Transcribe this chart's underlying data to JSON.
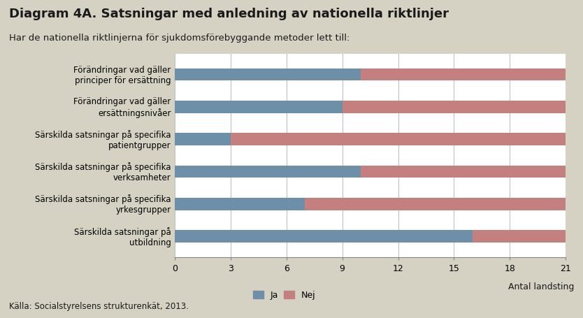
{
  "title": "Diagram 4A. Satsningar med anledning av nationella riktlinjer",
  "subtitle": "Har de nationella riktlinjerna för sjukdomsförebyggande metoder lett till:",
  "categories": [
    "Förändringar vad gäller\nprinciper för ersättning",
    "Förändringar vad gäller\nersättningsnivåer",
    "Särskilda satsningar på specifika\npatientgrupper",
    "Särskilda satsningar på specifika\nverksamheter",
    "Särskilda satsningar på specifika\nyrkesgrupper",
    "Särskilda satsningar på\nutbildning"
  ],
  "ja_values": [
    10,
    9,
    3,
    10,
    7,
    16
  ],
  "nej_values": [
    11,
    12,
    18,
    11,
    14,
    5
  ],
  "color_ja": "#6d8fa8",
  "color_nej": "#c47f7f",
  "xlabel": "Antal landsting",
  "xlim": [
    0,
    21
  ],
  "xticks": [
    0,
    3,
    6,
    9,
    12,
    15,
    18,
    21
  ],
  "legend_ja": "Ja",
  "legend_nej": "Nej",
  "source": "Källa: Socialstyrelsens strukturenkät, 2013.",
  "background_color": "#d5d2c4",
  "plot_background": "#ffffff",
  "title_fontsize": 13,
  "subtitle_fontsize": 9.5,
  "label_fontsize": 8.5,
  "tick_fontsize": 9,
  "source_fontsize": 8.5,
  "bar_height": 0.38
}
